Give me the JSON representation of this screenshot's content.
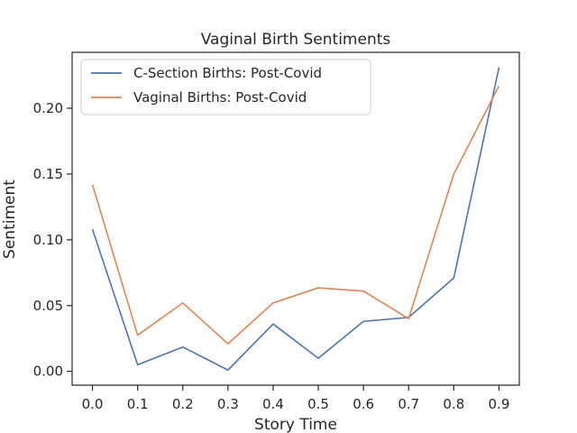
{
  "chart_data": {
    "type": "line",
    "title": "Vaginal Birth Sentiments",
    "xlabel": "Story Time",
    "ylabel": "Sentiment",
    "x": [
      0.0,
      0.1,
      0.2,
      0.3,
      0.4,
      0.5,
      0.6,
      0.7,
      0.8,
      0.9
    ],
    "x_tick_labels": [
      "0.0",
      "0.1",
      "0.2",
      "0.3",
      "0.4",
      "0.5",
      "0.6",
      "0.7",
      "0.8",
      "0.9"
    ],
    "y_ticks": [
      0.0,
      0.05,
      0.1,
      0.15,
      0.2
    ],
    "y_tick_labels": [
      "0.00",
      "0.05",
      "0.10",
      "0.15",
      "0.20"
    ],
    "xlim": [
      -0.045,
      0.945
    ],
    "ylim": [
      -0.0105,
      0.2425
    ],
    "grid": false,
    "legend_position": "top-left",
    "series": [
      {
        "name": "C-Section Births: Post-Covid",
        "color": "#4c72b0",
        "values": [
          0.108,
          0.005,
          0.0185,
          0.001,
          0.036,
          0.01,
          0.038,
          0.041,
          0.071,
          0.231
        ]
      },
      {
        "name": "Vaginal Births: Post-Covid",
        "color": "#dd8452",
        "values": [
          0.142,
          0.0275,
          0.052,
          0.021,
          0.052,
          0.0635,
          0.061,
          0.04,
          0.15,
          0.217
        ]
      }
    ]
  }
}
